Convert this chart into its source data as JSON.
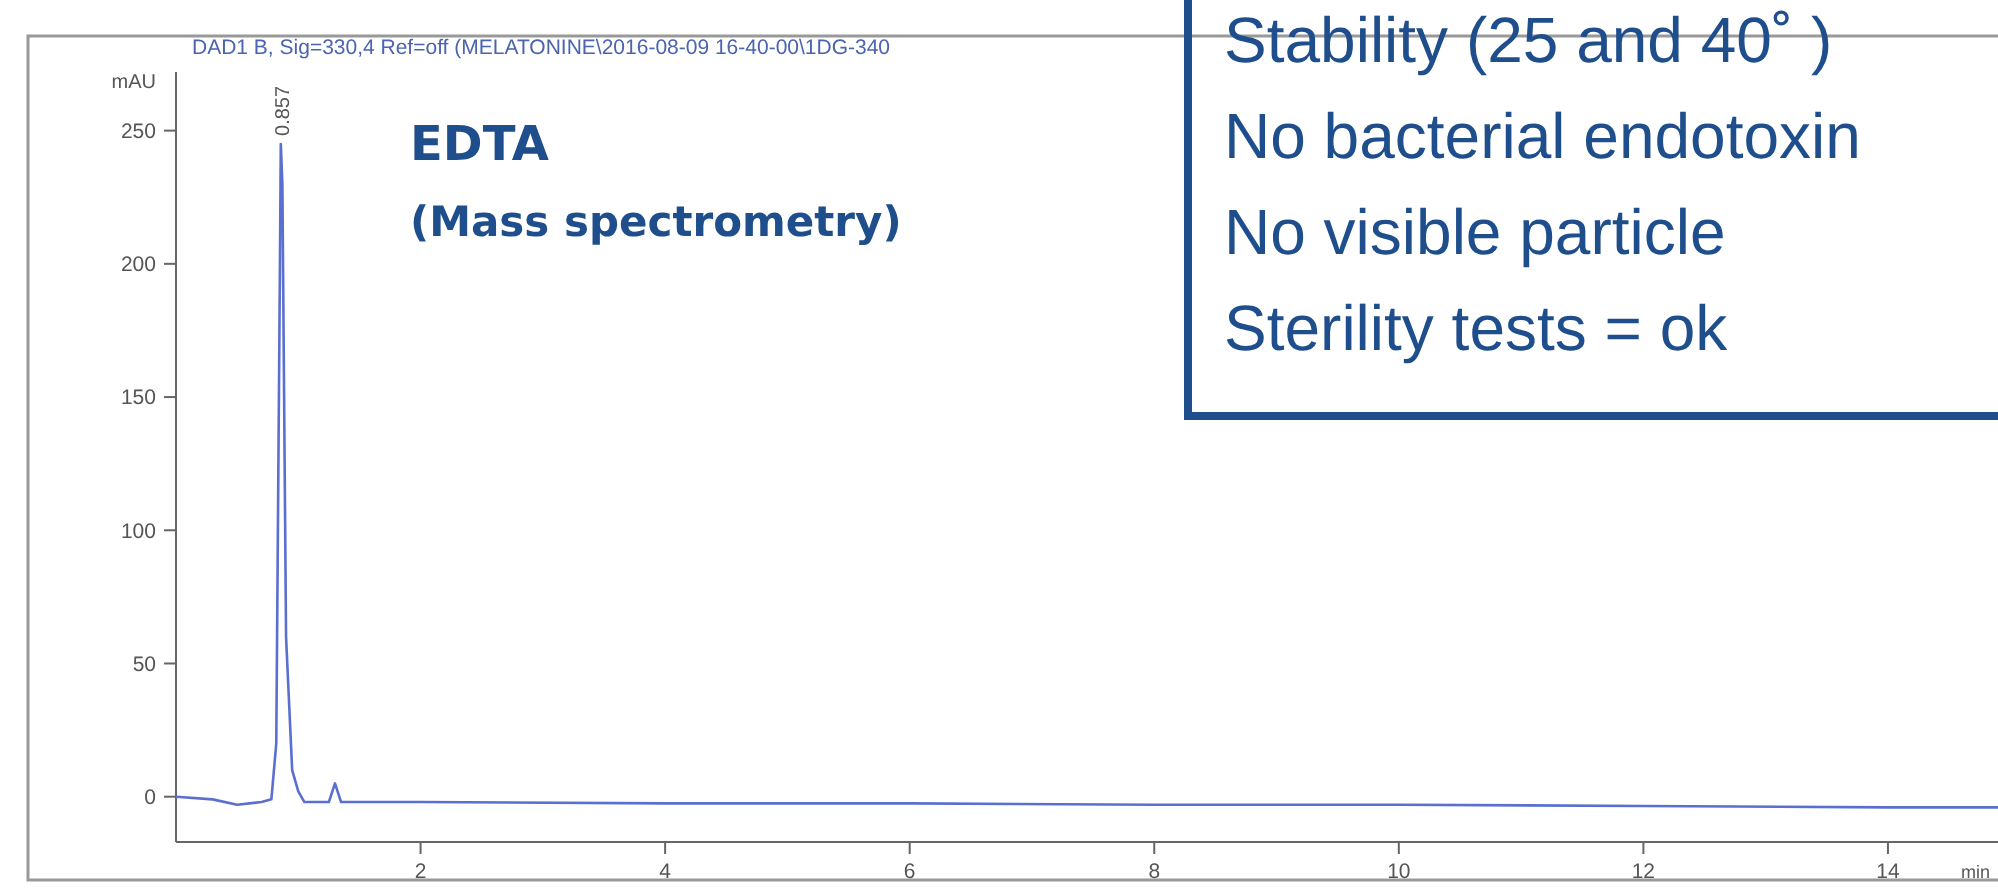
{
  "chart_data": {
    "type": "line",
    "title": "DAD1 B, Sig=330,4 Ref=off (MELATONINE\\2016-08-09 16-40-00\\1DG-340",
    "ylabel": "mAU",
    "xlabel": "min",
    "x": [
      0,
      0.3,
      0.5,
      0.7,
      0.78,
      0.82,
      0.85,
      0.857,
      0.87,
      0.9,
      0.95,
      1.0,
      1.05,
      1.1,
      1.25,
      1.3,
      1.35,
      1.5,
      2,
      4,
      6,
      8,
      10,
      12,
      14,
      14.9
    ],
    "series": [
      {
        "color": "#5a6fd0",
        "values": [
          0,
          -1,
          -3,
          -2,
          -1,
          20,
          200,
          245,
          230,
          60,
          10,
          2,
          -2,
          -2,
          -2,
          5,
          -2,
          -2,
          -2,
          -2.5,
          -2.5,
          -3,
          -3,
          -3.5,
          -4,
          -4
        ]
      }
    ],
    "xlim": [
      0,
      14.9
    ],
    "xticks": [
      2,
      4,
      6,
      8,
      10,
      12,
      14
    ],
    "ylim": [
      -17,
      272
    ],
    "yticks": [
      0,
      50,
      100,
      150,
      200,
      250
    ],
    "grid": false,
    "annotations": [
      {
        "text": "0.857",
        "x": 0.857,
        "y": 245
      },
      "EDTA",
      "(Mass spectrometry)",
      "Stability (25 and 40˚ )",
      "No bacterial endotoxin",
      "No visible particle",
      "Sterility tests = ok"
    ]
  }
}
